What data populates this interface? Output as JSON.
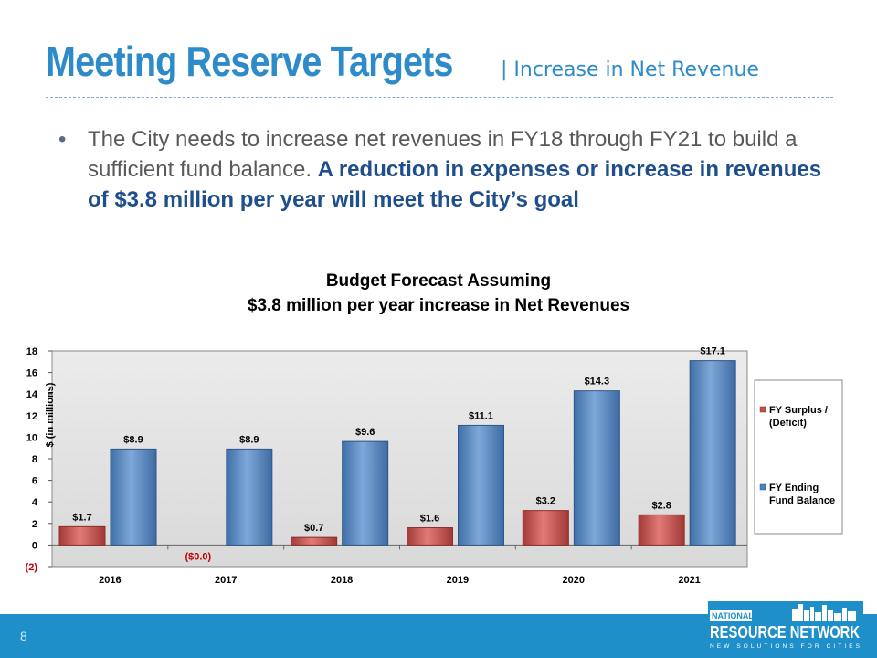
{
  "slide": {
    "title": "Meeting Reserve Targets",
    "subtitle": "| Increase in Net Revenue",
    "bullet_plain": "The City needs to increase net revenues in FY18 through FY21 to build a sufficient fund balance.  ",
    "bullet_emphasis": "A reduction in expenses or increase in revenues of $3.8 million per year will meet the City’s goal",
    "page_number": "8",
    "logo_top": "NATIONAL",
    "logo_main": "RESOURCE NETWORK",
    "logo_tagline": "NEW SOLUTIONS FOR CITIES",
    "colors": {
      "accent": "#2e8bc9",
      "footer": "#1f8fc9",
      "emphasis": "#1f4e8c"
    }
  },
  "chart_data": {
    "type": "bar",
    "title_line1": "Budget Forecast Assuming",
    "title_line2": "$3.8 million per year increase in Net Revenues",
    "ylabel": "$ (in millions)",
    "xlabel": "",
    "categories": [
      "2016",
      "2017",
      "2018",
      "2019",
      "2020",
      "2021"
    ],
    "ylim": [
      -2,
      18
    ],
    "yticks": [
      18,
      16,
      14,
      12,
      10,
      8,
      6,
      4,
      2,
      0,
      -2
    ],
    "ytick_labels": [
      "18",
      "16",
      "14",
      "12",
      "10",
      "8",
      "6",
      "4",
      "2",
      "0",
      "(2)"
    ],
    "grid": false,
    "legend_position": "right",
    "series": [
      {
        "name": "FY Surplus / (Deficit)",
        "color": "#c0504d",
        "values": [
          1.7,
          -0.03,
          0.7,
          1.6,
          3.2,
          2.8
        ],
        "labels": [
          "$1.7",
          "($0.0)",
          "$0.7",
          "$1.6",
          "$3.2",
          "$2.8"
        ]
      },
      {
        "name": "FY Ending Fund Balance",
        "color": "#4f81bd",
        "values": [
          8.9,
          8.9,
          9.6,
          11.1,
          14.3,
          17.1
        ],
        "labels": [
          "$8.9",
          "$8.9",
          "$9.6",
          "$11.1",
          "$14.3",
          "$17.1"
        ]
      }
    ]
  }
}
